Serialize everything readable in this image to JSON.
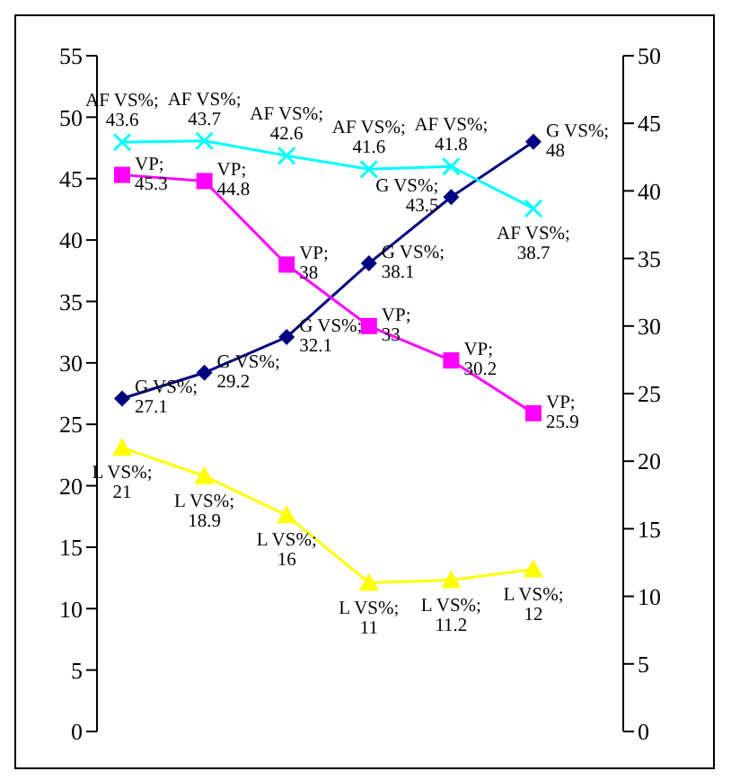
{
  "chart_data": {
    "type": "line",
    "categories": [
      null,
      null,
      null,
      null,
      null,
      null
    ],
    "grid": false,
    "legend": false,
    "ylim": [
      0,
      55
    ],
    "yticks": [
      0,
      5,
      10,
      15,
      20,
      25,
      30,
      35,
      40,
      45,
      50,
      55
    ],
    "y2lim": [
      0,
      50
    ],
    "y2ticks": [
      0,
      5,
      10,
      15,
      20,
      25,
      30,
      35,
      40,
      45,
      50
    ],
    "series": [
      {
        "color": "#000080",
        "marker": "diamond",
        "values": [
          27.1,
          29.2,
          32.1,
          38.1,
          43.5,
          48
        ],
        "value_labels": [
          "G VS%; 27.1",
          "G VS%; 29.2",
          "G VS%; 32.1",
          "G VS%; 38.1",
          "G VS%; 43.5",
          "G VS%; 48"
        ]
      },
      {
        "color": "#ff00ff",
        "marker": "square",
        "values": [
          45.3,
          44.8,
          38,
          33,
          30.2,
          25.9
        ],
        "value_labels": [
          "VP; 45.3",
          "VP; 44.8",
          "VP; 38",
          "VP; 33",
          "VP; 30.2",
          "VP; 25.9"
        ]
      },
      {
        "color": "#00ffff",
        "marker": "cross",
        "axis": "y2",
        "values": [
          43.6,
          43.7,
          42.6,
          41.6,
          41.8,
          38.7
        ],
        "value_labels": [
          "AF VS%; 43.6",
          "AF VS%; 43.7",
          "AF VS%; 42.6",
          "AF VS%; 41.6",
          "AF VS%; 41.8",
          "AF VS%; 38.7"
        ]
      },
      {
        "color": "#ffff00",
        "marker": "triangle",
        "axis": "y2",
        "values": [
          21,
          18.9,
          16,
          11,
          11.2,
          12
        ],
        "value_labels": [
          "L VS%; 21",
          "L VS%; 18.9",
          "L VS%; 16",
          "L VS%; 11",
          "L VS%; 11.2",
          "L VS%; 12"
        ]
      }
    ]
  }
}
